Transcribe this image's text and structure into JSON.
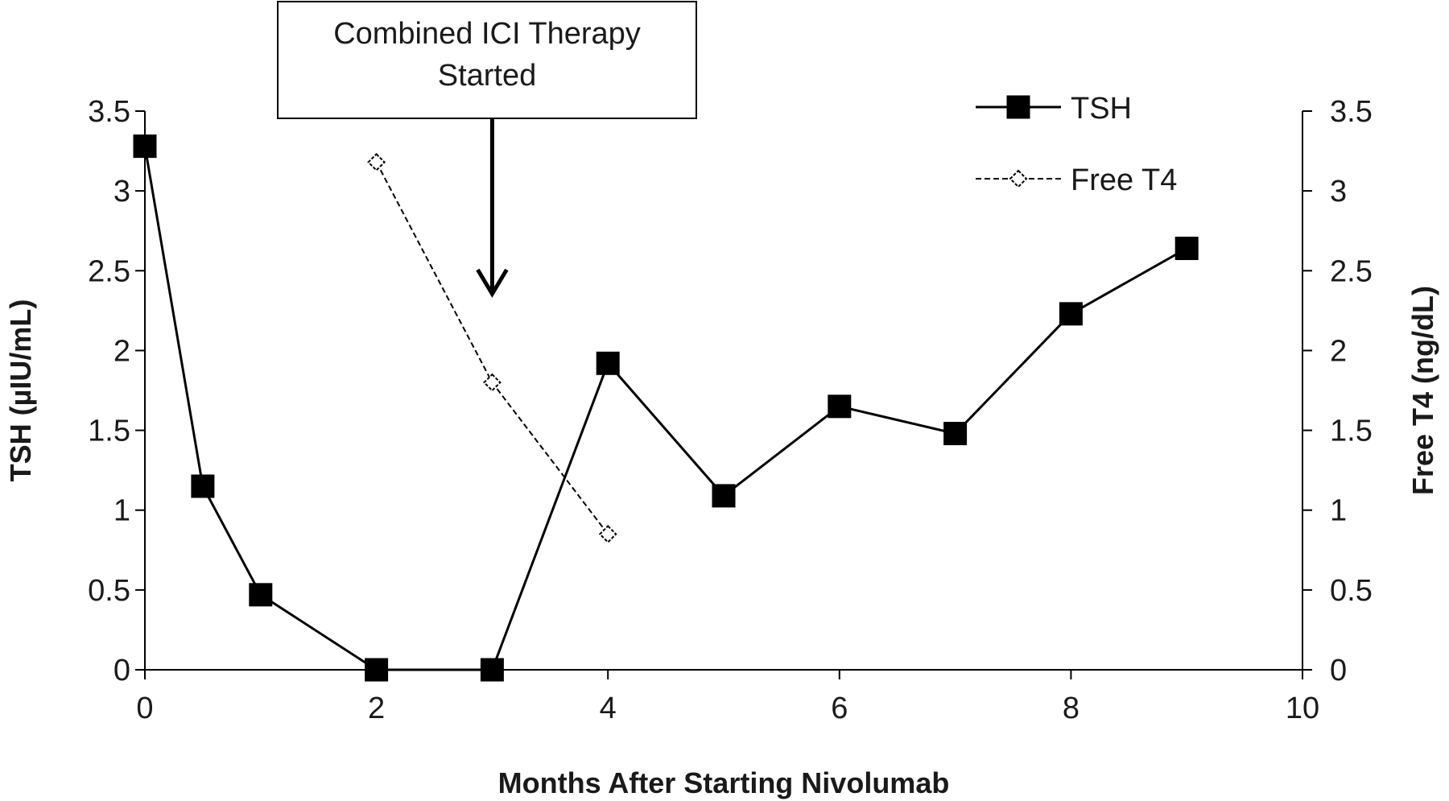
{
  "chart_data": {
    "type": "line",
    "x_axis": {
      "title": "Months After Starting Nivolumab",
      "range": [
        0,
        10
      ],
      "ticks": [
        0,
        2,
        4,
        6,
        8,
        10
      ],
      "tick_labels": [
        "0",
        "2",
        "4",
        "6",
        "8",
        "10"
      ]
    },
    "y_axis_left": {
      "title": "TSH (µIU/mL)",
      "range": [
        0,
        3.5
      ],
      "ticks": [
        0,
        0.5,
        1,
        1.5,
        2,
        2.5,
        3,
        3.5
      ],
      "tick_labels": [
        "0",
        "0.5",
        "1",
        "1.5",
        "2",
        "2.5",
        "3",
        "3.5"
      ]
    },
    "y_axis_right": {
      "title": "Free T4 (ng/dL)",
      "range": [
        0,
        3.5
      ],
      "ticks": [
        0,
        0.5,
        1,
        1.5,
        2,
        2.5,
        3,
        3.5
      ],
      "tick_labels": [
        "0",
        "0.5",
        "1",
        "1.5",
        "2",
        "2.5",
        "3",
        "3.5"
      ]
    },
    "series": [
      {
        "name": "TSH",
        "axis": "left",
        "marker": "filled-square",
        "line": "solid",
        "color": "#000000",
        "x": [
          0,
          0.5,
          1,
          2,
          3,
          4,
          5,
          6,
          7,
          8,
          9
        ],
        "y": [
          3.28,
          1.15,
          0.47,
          0.0,
          0.0,
          1.92,
          1.09,
          1.65,
          1.48,
          2.23,
          2.64
        ]
      },
      {
        "name": "Free T4",
        "axis": "right",
        "marker": "open-diamond",
        "line": "dashed",
        "color": "#000000",
        "x": [
          2,
          3,
          4
        ],
        "y": [
          3.18,
          1.8,
          0.85
        ]
      }
    ],
    "annotations": [
      {
        "text_lines": [
          "Combined ICI Therapy",
          "Started"
        ],
        "arrow_x": 3
      }
    ],
    "legend": {
      "position": "top-right"
    },
    "grid": false
  }
}
